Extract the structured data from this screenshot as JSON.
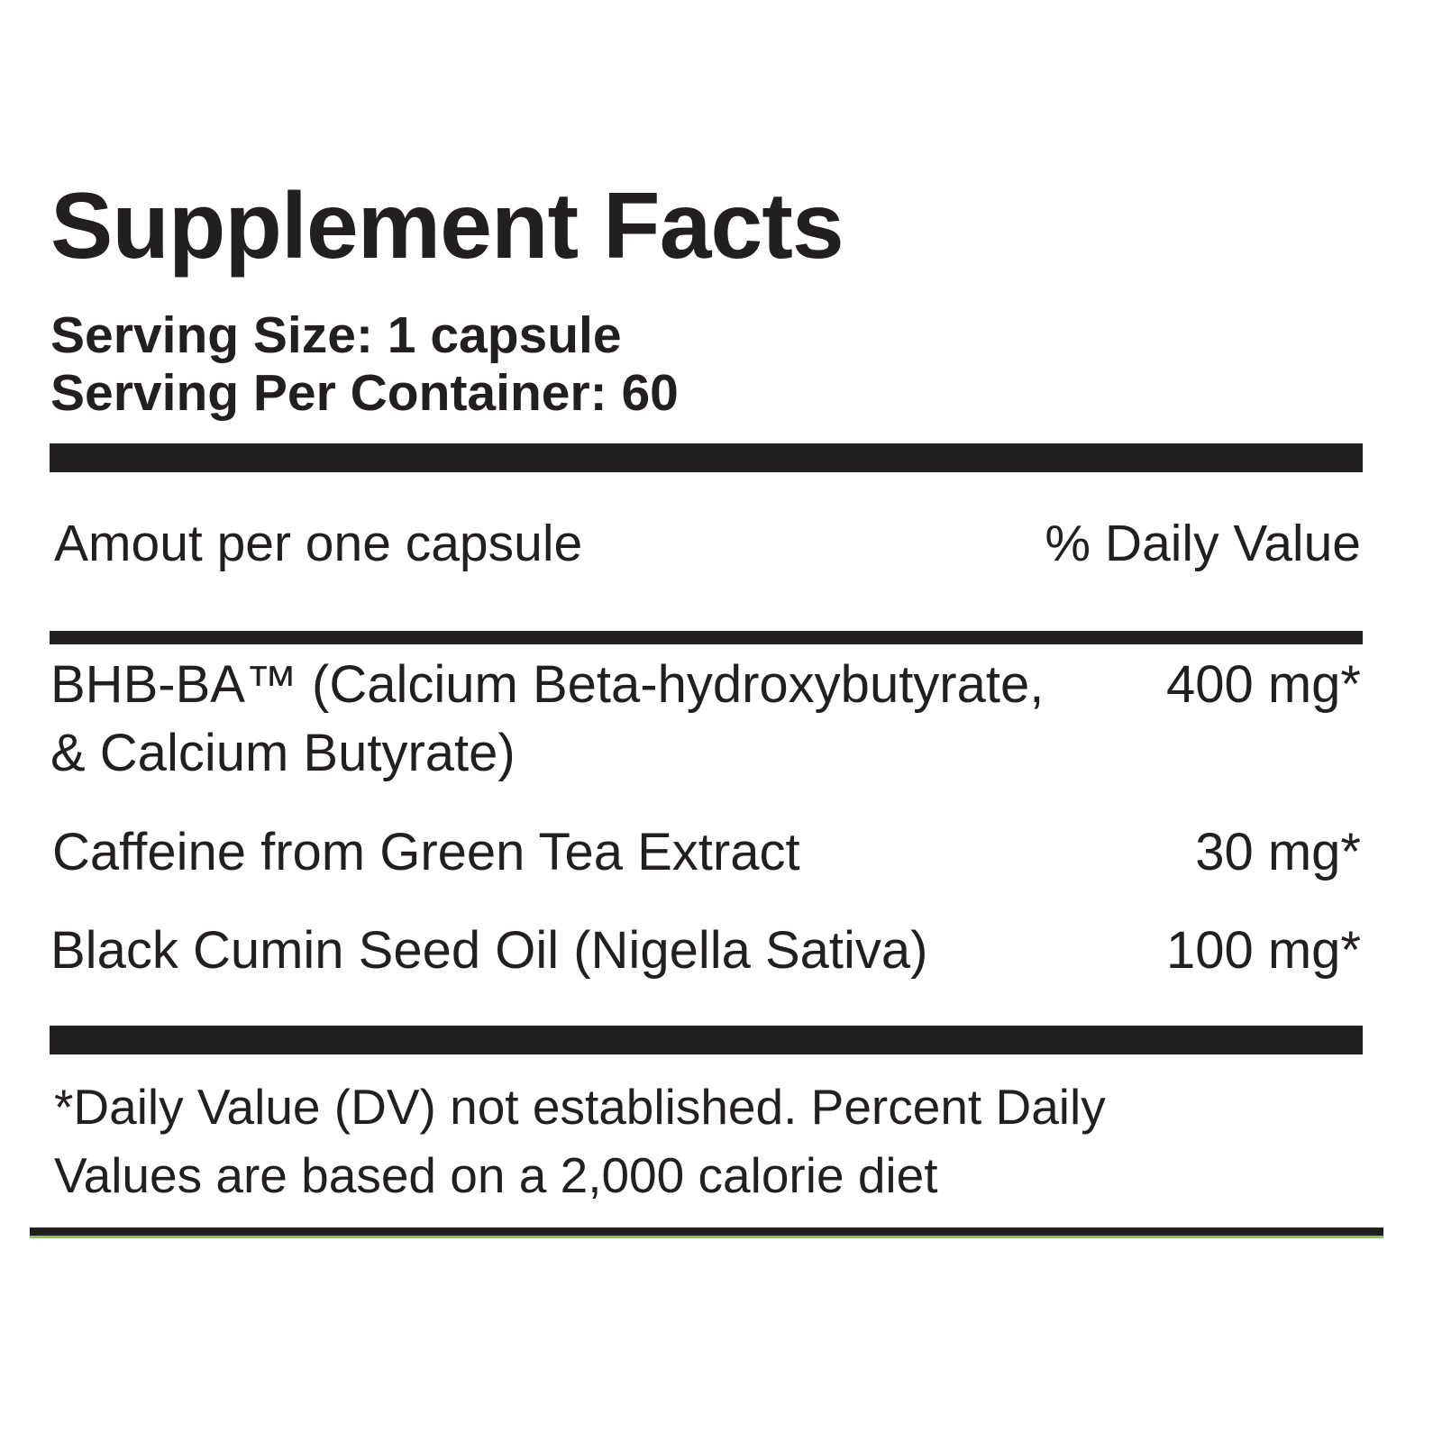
{
  "title": "Supplement Facts",
  "serving_size": "Serving Size: 1 capsule",
  "servings_per_container": "Serving Per Container: 60",
  "header": {
    "amount": "Amout per one capsule",
    "daily_value": "% Daily Value"
  },
  "ingredients": [
    {
      "name_line1": "BHB-BA™ (Calcium Beta-hydroxybutyrate,",
      "name_line2": "& Calcium Butyrate)",
      "amount": "400 mg*"
    },
    {
      "name": "Caffeine from Green Tea Extract",
      "amount": "30 mg*"
    },
    {
      "name": "Black Cumin Seed Oil (Nigella Sativa)",
      "amount": "100 mg*"
    }
  ],
  "footnote_line1": "*Daily Value (DV) not established. Percent Daily",
  "footnote_line2": "Values are based on a 2,000 calorie diet",
  "colors": {
    "text": "#231f20",
    "accent": "#8dc63f"
  }
}
